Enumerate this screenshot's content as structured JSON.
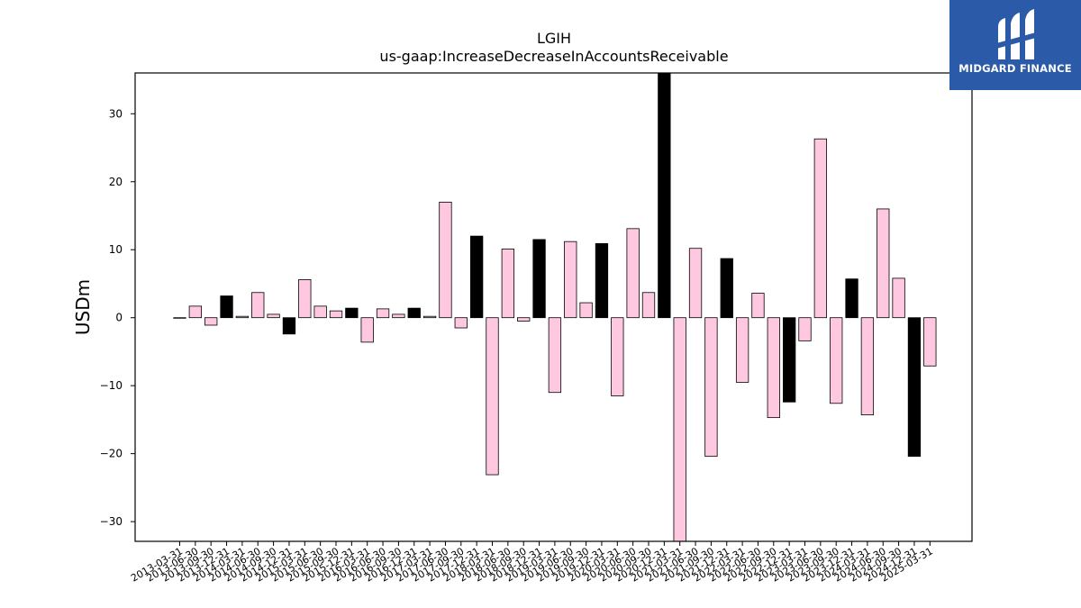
{
  "chart_data": {
    "type": "bar",
    "title": "LGIH",
    "subtitle": "us-gaap:IncreaseDecreaseInAccountsReceivable",
    "xlabel": "",
    "ylabel": "USDm",
    "ylim": [
      -32.9,
      36.0
    ],
    "yticks": [
      -30,
      -20,
      -10,
      0,
      10,
      20,
      30
    ],
    "grid": false,
    "colors": {
      "quarter": "#ffc8e1",
      "annual": "#000000",
      "edge": "#000000"
    },
    "categories": [
      "2013-03-31",
      "2013-06-30",
      "2013-09-30",
      "2013-12-31",
      "2014-03-31",
      "2014-06-30",
      "2014-09-30",
      "2014-12-31",
      "2015-03-31",
      "2015-06-30",
      "2015-09-30",
      "2015-12-31",
      "2016-03-31",
      "2016-06-30",
      "2016-09-30",
      "2016-12-31",
      "2017-03-31",
      "2017-06-30",
      "2017-09-30",
      "2017-12-31",
      "2018-03-31",
      "2018-06-30",
      "2018-09-30",
      "2018-12-31",
      "2019-03-31",
      "2019-06-30",
      "2019-09-30",
      "2019-12-31",
      "2020-03-31",
      "2020-06-30",
      "2020-09-30",
      "2020-12-31",
      "2021-03-31",
      "2021-06-30",
      "2021-09-30",
      "2021-12-31",
      "2022-03-31",
      "2022-06-30",
      "2022-09-30",
      "2022-12-31",
      "2023-03-31",
      "2023-06-30",
      "2023-09-30",
      "2023-12-31",
      "2024-03-31",
      "2024-06-30",
      "2024-09-30",
      "2024-12-31",
      "2025-03-31"
    ],
    "values": [
      0.0,
      1.7,
      -1.1,
      3.2,
      0.2,
      3.7,
      0.5,
      -2.4,
      5.6,
      1.7,
      1.0,
      1.4,
      -3.6,
      1.3,
      0.5,
      1.4,
      0.2,
      17.0,
      -1.5,
      12.0,
      -23.1,
      10.1,
      -0.5,
      11.5,
      -11.0,
      11.2,
      2.2,
      10.9,
      -11.5,
      13.1,
      3.7,
      36.0,
      -32.9,
      10.2,
      -20.4,
      8.7,
      -9.5,
      3.6,
      -14.7,
      -12.4,
      -3.4,
      26.3,
      -12.6,
      5.7,
      -14.3,
      16.0,
      5.8,
      -20.4,
      -7.1
    ],
    "annual": [
      false,
      false,
      false,
      true,
      false,
      false,
      false,
      true,
      false,
      false,
      false,
      true,
      false,
      false,
      false,
      true,
      false,
      false,
      false,
      true,
      false,
      false,
      false,
      true,
      false,
      false,
      false,
      true,
      false,
      false,
      false,
      true,
      false,
      false,
      false,
      true,
      false,
      false,
      false,
      true,
      false,
      false,
      false,
      true,
      false,
      false,
      false,
      true,
      false
    ]
  },
  "logo": {
    "brand": "MIDGARD FINANCE",
    "background": "#2a5aa8"
  }
}
